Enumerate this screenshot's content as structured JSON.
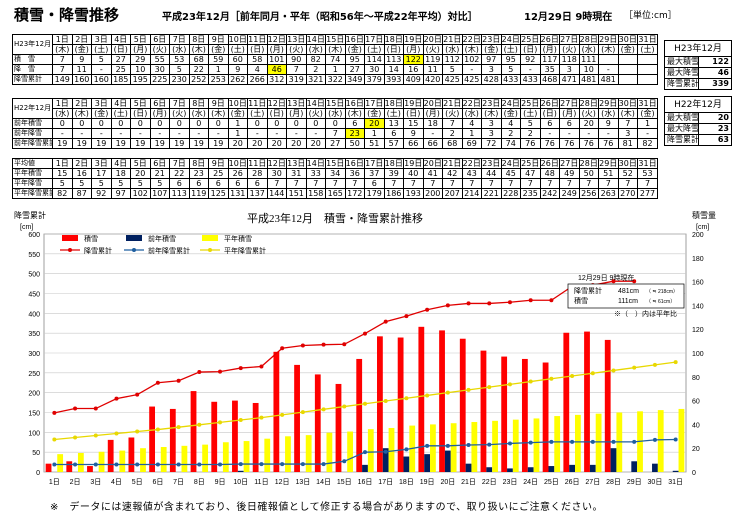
{
  "header": {
    "title": "積雪・降雪推移",
    "subtitle": "平成23年12月［前年同月・平年（昭和56年～平成22年平均）対比］",
    "datetime": "12月29日 9時現在",
    "unit": "［単位:cm］"
  },
  "table_current": {
    "id_label": "H23年12月",
    "days": [
      "1日",
      "2日",
      "3日",
      "4日",
      "5日",
      "6日",
      "7日",
      "8日",
      "9日",
      "10日",
      "11日",
      "12日",
      "13日",
      "14日",
      "15日",
      "16日",
      "17日",
      "18日",
      "19日",
      "20日",
      "21日",
      "22日",
      "23日",
      "24日",
      "25日",
      "26日",
      "27日",
      "28日",
      "29日",
      "30日",
      "31日"
    ],
    "weekdays": [
      "(木)",
      "(金)",
      "(土)",
      "(日)",
      "(月)",
      "(火)",
      "(水)",
      "(木)",
      "(金)",
      "(土)",
      "(日)",
      "(月)",
      "(火)",
      "(水)",
      "(木)",
      "(金)",
      "(土)",
      "(日)",
      "(月)",
      "(火)",
      "(水)",
      "(木)",
      "(金)",
      "(土)",
      "(日)",
      "(月)",
      "(火)",
      "(水)",
      "(木)",
      "(金)",
      "(土)"
    ],
    "rows": [
      {
        "label": "積　雪",
        "values": [
          "7",
          "9",
          "5",
          "27",
          "29",
          "55",
          "53",
          "68",
          "59",
          "60",
          "58",
          "101",
          "90",
          "82",
          "74",
          "95",
          "114",
          "113",
          "122",
          "119",
          "112",
          "102",
          "97",
          "95",
          "92",
          "117",
          "118",
          "111",
          "",
          "",
          ""
        ]
      },
      {
        "label": "降　雪",
        "values": [
          "7",
          "11",
          "-",
          "25",
          "10",
          "30",
          "5",
          "22",
          "1",
          "9",
          "4",
          "46",
          "7",
          "2",
          "1",
          "27",
          "30",
          "14",
          "16",
          "11",
          "5",
          "-",
          "3",
          "5",
          "-",
          "35",
          "3",
          "10",
          "-",
          "",
          ""
        ]
      },
      {
        "label": "降雪累計",
        "values": [
          "149",
          "160",
          "160",
          "185",
          "195",
          "225",
          "230",
          "252",
          "253",
          "262",
          "266",
          "312",
          "319",
          "321",
          "322",
          "349",
          "379",
          "393",
          "409",
          "420",
          "425",
          "425",
          "428",
          "433",
          "433",
          "468",
          "471",
          "481",
          "481",
          "",
          ""
        ]
      }
    ]
  },
  "table_previous": {
    "id_label": "H22年12月",
    "days": [
      "1日",
      "2日",
      "3日",
      "4日",
      "5日",
      "6日",
      "7日",
      "8日",
      "9日",
      "10日",
      "11日",
      "12日",
      "13日",
      "14日",
      "15日",
      "16日",
      "17日",
      "18日",
      "19日",
      "20日",
      "21日",
      "22日",
      "23日",
      "24日",
      "25日",
      "26日",
      "27日",
      "28日",
      "29日",
      "30日",
      "31日"
    ],
    "weekdays": [
      "(水)",
      "(木)",
      "(金)",
      "(土)",
      "(日)",
      "(月)",
      "(火)",
      "(水)",
      "(木)",
      "(金)",
      "(土)",
      "(日)",
      "(月)",
      "(火)",
      "(水)",
      "(木)",
      "(金)",
      "(土)",
      "(日)",
      "(月)",
      "(火)",
      "(水)",
      "(木)",
      "(金)",
      "(土)",
      "(日)",
      "(月)",
      "(火)",
      "(水)",
      "(木)",
      "(金)"
    ],
    "rows": [
      {
        "label": "前年積雪",
        "values": [
          "0",
          "0",
          "0",
          "0",
          "0",
          "0",
          "0",
          "0",
          "0",
          "1",
          "0",
          "0",
          "0",
          "0",
          "0",
          "6",
          "20",
          "13",
          "15",
          "18",
          "7",
          "4",
          "3",
          "4",
          "5",
          "6",
          "6",
          "20",
          "9",
          "7",
          "1"
        ]
      },
      {
        "label": "前年降雪",
        "values": [
          "-",
          "-",
          "-",
          "-",
          "-",
          "-",
          "-",
          "-",
          "-",
          "1",
          "-",
          "-",
          "-",
          "-",
          "7",
          "23",
          "1",
          "6",
          "9",
          "-",
          "2",
          "1",
          "3",
          "2",
          "2",
          "-",
          "-",
          "-",
          "-",
          "3",
          "-"
        ]
      },
      {
        "label": "前年降雪累計",
        "values": [
          "19",
          "19",
          "19",
          "19",
          "19",
          "19",
          "19",
          "19",
          "19",
          "20",
          "20",
          "20",
          "20",
          "20",
          "27",
          "50",
          "51",
          "57",
          "66",
          "66",
          "68",
          "69",
          "72",
          "74",
          "76",
          "76",
          "76",
          "76",
          "76",
          "81",
          "82"
        ]
      }
    ]
  },
  "table_normal": {
    "days": [
      "1日",
      "2日",
      "3日",
      "4日",
      "5日",
      "6日",
      "7日",
      "8日",
      "9日",
      "10日",
      "11日",
      "12日",
      "13日",
      "14日",
      "15日",
      "16日",
      "17日",
      "18日",
      "19日",
      "20日",
      "21日",
      "22日",
      "23日",
      "24日",
      "25日",
      "26日",
      "27日",
      "28日",
      "29日",
      "30日",
      "31日"
    ],
    "head_label": "平均値",
    "rows": [
      {
        "label": "平年積雪",
        "values": [
          "15",
          "16",
          "17",
          "18",
          "20",
          "21",
          "22",
          "23",
          "25",
          "26",
          "28",
          "30",
          "31",
          "33",
          "34",
          "36",
          "37",
          "39",
          "40",
          "41",
          "42",
          "43",
          "44",
          "45",
          "47",
          "48",
          "49",
          "50",
          "51",
          "52",
          "53"
        ]
      },
      {
        "label": "平年降雪",
        "values": [
          "5",
          "5",
          "5",
          "5",
          "5",
          "5",
          "6",
          "6",
          "6",
          "6",
          "6",
          "7",
          "7",
          "7",
          "7",
          "7",
          "6",
          "7",
          "7",
          "7",
          "7",
          "7",
          "7",
          "7",
          "7",
          "7",
          "7",
          "7",
          "7",
          "7",
          "7"
        ]
      },
      {
        "label": "平年降雪累計",
        "values": [
          "82",
          "87",
          "92",
          "97",
          "102",
          "107",
          "113",
          "119",
          "125",
          "131",
          "137",
          "144",
          "151",
          "158",
          "165",
          "172",
          "179",
          "186",
          "193",
          "200",
          "207",
          "214",
          "221",
          "228",
          "235",
          "242",
          "249",
          "256",
          "263",
          "270",
          "277"
        ]
      }
    ]
  },
  "side_current": {
    "title": "H23年12月",
    "rows": [
      {
        "label": "最大積雪",
        "value": "122"
      },
      {
        "label": "最大降雪",
        "value": "46"
      },
      {
        "label": "降雪累計",
        "value": "339"
      }
    ]
  },
  "side_previous": {
    "title": "H22年12月",
    "rows": [
      {
        "label": "最大積雪",
        "value": "20"
      },
      {
        "label": "最大降雪",
        "value": "23"
      },
      {
        "label": "降雪累計",
        "value": "63"
      }
    ]
  },
  "chart_data": {
    "type": "bar",
    "title": "平成23年12月　積雪・降雪累計推移",
    "ylabel_left": "降雪累計",
    "ylabel_left_unit": "[cm]",
    "ylabel_right": "積雪量",
    "ylabel_right_unit": "[cm]",
    "ylim_left": [
      0,
      600
    ],
    "ylim_right": [
      0,
      200
    ],
    "yticks_left": [
      0,
      50,
      100,
      150,
      200,
      250,
      300,
      350,
      400,
      450,
      500,
      550,
      600
    ],
    "yticks_right": [
      0,
      20,
      40,
      60,
      80,
      100,
      120,
      140,
      160,
      180,
      200
    ],
    "categories": [
      "1日",
      "2日",
      "3日",
      "4日",
      "5日",
      "6日",
      "7日",
      "8日",
      "9日",
      "10日",
      "11日",
      "12日",
      "13日",
      "14日",
      "15日",
      "16日",
      "17日",
      "18日",
      "19日",
      "20日",
      "21日",
      "22日",
      "23日",
      "24日",
      "25日",
      "26日",
      "27日",
      "28日",
      "29日",
      "30日",
      "31日"
    ],
    "series": [
      {
        "name": "積雪",
        "kind": "bar",
        "axis": "right",
        "color": "#ff0000",
        "values": [
          7,
          9,
          5,
          27,
          29,
          55,
          53,
          68,
          59,
          60,
          58,
          101,
          90,
          82,
          74,
          95,
          114,
          113,
          122,
          119,
          112,
          102,
          97,
          95,
          92,
          117,
          118,
          111,
          null,
          null,
          null
        ]
      },
      {
        "name": "前年積雪",
        "kind": "bar",
        "axis": "right",
        "color": "#002060",
        "values": [
          0,
          0,
          0,
          0,
          0,
          0,
          0,
          0,
          0,
          1,
          0,
          0,
          0,
          0,
          0,
          6,
          20,
          13,
          15,
          18,
          7,
          4,
          3,
          4,
          5,
          6,
          6,
          20,
          9,
          7,
          1
        ]
      },
      {
        "name": "平年積雪",
        "kind": "bar",
        "axis": "right",
        "color": "#ffff00",
        "values": [
          15,
          16,
          17,
          18,
          20,
          21,
          22,
          23,
          25,
          26,
          28,
          30,
          31,
          33,
          34,
          36,
          37,
          39,
          40,
          41,
          42,
          43,
          44,
          45,
          47,
          48,
          49,
          50,
          51,
          52,
          53
        ]
      },
      {
        "name": "降雪累計",
        "kind": "line",
        "axis": "left",
        "color": "#e00000",
        "values": [
          149,
          160,
          160,
          185,
          195,
          225,
          230,
          252,
          253,
          262,
          266,
          312,
          319,
          321,
          322,
          349,
          379,
          393,
          409,
          420,
          425,
          425,
          428,
          433,
          433,
          468,
          471,
          481,
          481,
          null,
          null
        ]
      },
      {
        "name": "前年降雪累計",
        "kind": "line",
        "axis": "left",
        "color": "#1f5fa0",
        "values": [
          19,
          19,
          19,
          19,
          19,
          19,
          19,
          19,
          19,
          20,
          20,
          20,
          20,
          20,
          27,
          50,
          51,
          57,
          66,
          66,
          68,
          69,
          72,
          74,
          76,
          76,
          76,
          76,
          76,
          81,
          82
        ]
      },
      {
        "name": "平年降雪累計",
        "kind": "line",
        "axis": "left",
        "color": "#e8d800",
        "values": [
          82,
          87,
          92,
          97,
          102,
          107,
          113,
          119,
          125,
          131,
          137,
          144,
          151,
          158,
          165,
          172,
          179,
          186,
          193,
          200,
          207,
          214,
          221,
          228,
          235,
          242,
          249,
          256,
          263,
          270,
          277
        ]
      }
    ],
    "annotation": {
      "title": "12月29日 9時現在",
      "rows": [
        {
          "label": "降雪累計",
          "value": "481cm",
          "ratio": "（ ≒ 218cm）"
        },
        {
          "label": "積雪",
          "value": "111cm",
          "ratio": "（ ≒ 61cm）"
        }
      ],
      "footnote": "※（　）内は平年比"
    },
    "legend_position": "top-left"
  },
  "footer": {
    "note": "※　データには速報値が含まれており、後日確報値として修正する場合がありますので、取り扱いにご注意ください。"
  }
}
